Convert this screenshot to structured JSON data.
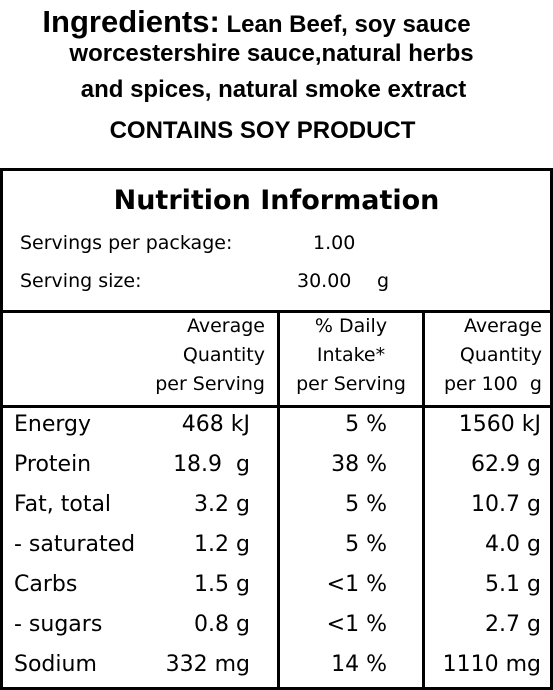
{
  "ingredients": {
    "label": "Ingredients:",
    "lines": [
      " Lean Beef, soy sauce",
      "worcestershire sauce,natural herbs",
      "and spices, natural smoke extract"
    ],
    "allergen": "CONTAINS SOY PRODUCT"
  },
  "panel": {
    "title": "Nutrition Information",
    "servings": [
      [
        "Servings per package:",
        "1.00",
        ""
      ],
      [
        "Serving size:",
        "30.00",
        "g"
      ]
    ],
    "header": [
      [
        "Average",
        "Quantity",
        "per Serving"
      ],
      [
        "% Daily",
        "Intake*",
        "per Serving"
      ],
      [
        "Average",
        "Quantity",
        "per 100  g"
      ]
    ],
    "rows": [
      [
        "Energy",
        "468 kJ",
        "5 %",
        "1560 kJ"
      ],
      [
        "Protein",
        "18.9  g",
        "38 %",
        "62.9 g"
      ],
      [
        "Fat, total",
        "3.2 g",
        "5 %",
        "10.7 g"
      ],
      [
        "- saturated",
        "1.2 g",
        "5 %",
        "4.0 g"
      ],
      [
        "Carbs",
        "1.5 g",
        "<1 %",
        "5.1 g"
      ],
      [
        "- sugars",
        "0.8 g",
        "<1 %",
        "2.7 g"
      ],
      [
        "Sodium",
        "332 mg",
        "14 %",
        "1110 mg"
      ]
    ]
  }
}
